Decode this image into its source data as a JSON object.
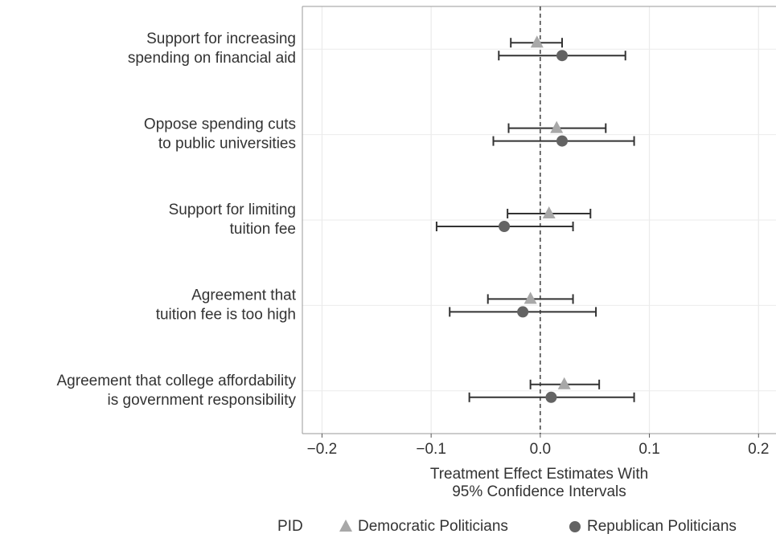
{
  "chart_data": {
    "type": "coefplot",
    "categories": [
      [
        "Support for increasing",
        "spending on financial aid"
      ],
      [
        "Oppose spending cuts",
        "to public universities"
      ],
      [
        "Support for limiting",
        "tuition fee"
      ],
      [
        "Agreement that",
        "tuition fee is too high"
      ],
      [
        "Agreement that college affordability",
        "is government responsibility"
      ]
    ],
    "series": [
      {
        "name": "Democratic Politicians",
        "color": "#a8a8a8",
        "marker": "triangle",
        "values": [
          -0.003,
          0.015,
          0.008,
          -0.009,
          0.022
        ],
        "lower": [
          -0.027,
          -0.029,
          -0.03,
          -0.048,
          -0.009
        ],
        "upper": [
          0.02,
          0.06,
          0.046,
          0.03,
          0.054
        ]
      },
      {
        "name": "Republican Politicians",
        "color": "#636363",
        "marker": "circle",
        "values": [
          0.02,
          0.02,
          -0.033,
          -0.016,
          0.01
        ],
        "lower": [
          -0.038,
          -0.043,
          -0.095,
          -0.083,
          -0.065
        ],
        "upper": [
          0.078,
          0.086,
          0.03,
          0.051,
          0.086
        ]
      }
    ],
    "xlabel": [
      "Treatment Effect Estimates With",
      "95% Confidence Intervals"
    ],
    "legend_title": "PID",
    "xlim": [
      -0.218,
      0.216
    ],
    "xticks": [
      {
        "value": -0.2,
        "label": "−0.2"
      },
      {
        "value": -0.1,
        "label": "−0.1"
      },
      {
        "value": 0,
        "label": "0.0"
      },
      0.1,
      0.2
    ],
    "reference_line": 0,
    "grid": true,
    "legend_position": "bottom"
  }
}
